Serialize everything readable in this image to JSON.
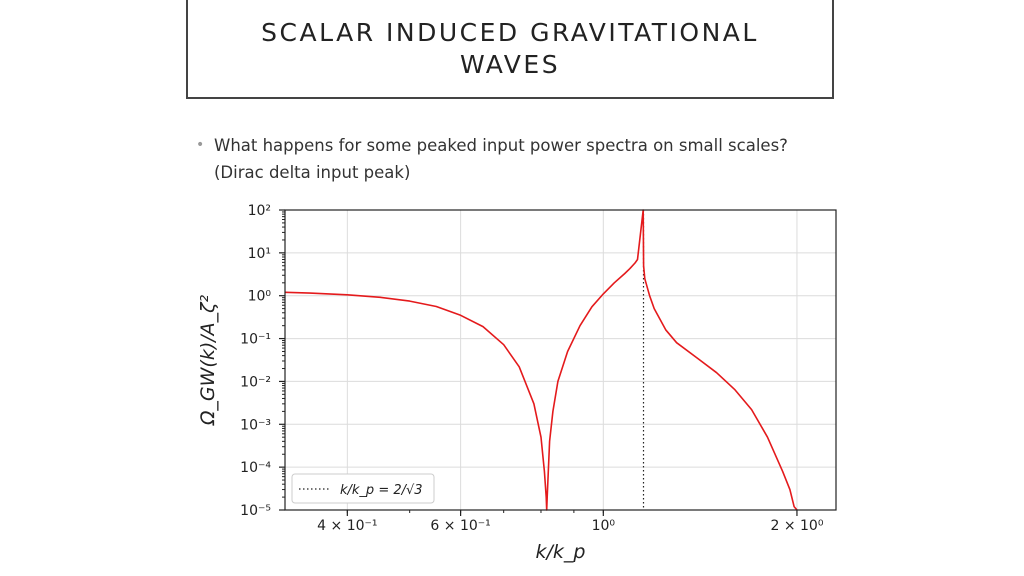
{
  "slide": {
    "title_line1": "SCALAR INDUCED GRAVITATIONAL",
    "title_line2": "WAVES",
    "bullet_line1": "What happens for some peaked input power spectra on small scales?",
    "bullet_line2": "(Dirac delta input peak)"
  },
  "chart_data": {
    "type": "line",
    "x_scale": "log",
    "y_scale": "log",
    "xlim": [
      0.32,
      2.3
    ],
    "ylim": [
      1e-05,
      100
    ],
    "grid": true,
    "xlabel": "k/k_p",
    "ylabel": "Ω_GW(k)/A_ζ²",
    "x_tick_labels": [
      {
        "value": 0.4,
        "label": "4 × 10⁻¹"
      },
      {
        "value": 0.6,
        "label": "6 × 10⁻¹"
      },
      {
        "value": 1.0,
        "label": "10⁰"
      },
      {
        "value": 2.0,
        "label": "2 × 10⁰"
      }
    ],
    "y_tick_labels": [
      {
        "value": 100,
        "label": "10²"
      },
      {
        "value": 10,
        "label": "10¹"
      },
      {
        "value": 1,
        "label": "10⁰"
      },
      {
        "value": 0.1,
        "label": "10⁻¹"
      },
      {
        "value": 0.01,
        "label": "10⁻²"
      },
      {
        "value": 0.001,
        "label": "10⁻³"
      },
      {
        "value": 0.0001,
        "label": "10⁻⁴"
      },
      {
        "value": 1e-05,
        "label": "10⁻⁵"
      }
    ],
    "series": [
      {
        "color": "#e41a1c",
        "x": [
          0.32,
          0.35,
          0.4,
          0.45,
          0.5,
          0.55,
          0.6,
          0.65,
          0.7,
          0.74,
          0.78,
          0.8,
          0.81,
          0.815,
          0.8165,
          0.818,
          0.825,
          0.835,
          0.85,
          0.88,
          0.92,
          0.96,
          1.0,
          1.04,
          1.08,
          1.1,
          1.12,
          1.13,
          1.1535,
          1.155,
          1.16,
          1.18,
          1.2,
          1.25,
          1.3,
          1.4,
          1.5,
          1.6,
          1.7,
          1.8,
          1.9,
          1.95,
          1.98,
          2.0
        ],
        "y": [
          1.2,
          1.15,
          1.05,
          0.92,
          0.75,
          0.56,
          0.35,
          0.19,
          0.072,
          0.022,
          0.003,
          0.0005,
          8e-05,
          2e-05,
          1e-05,
          2e-05,
          0.0004,
          0.002,
          0.01,
          0.05,
          0.2,
          0.55,
          1.1,
          2.0,
          3.3,
          4.3,
          5.8,
          7.0,
          100,
          5.0,
          2.5,
          1.0,
          0.5,
          0.16,
          0.08,
          0.035,
          0.016,
          0.0065,
          0.0022,
          0.0005,
          8e-05,
          3e-05,
          1.2e-05,
          1e-05
        ]
      }
    ],
    "vline": {
      "x": 1.1547,
      "style": "dotted",
      "color": "#222"
    },
    "legend": {
      "label": "k/k_p = 2/√3",
      "placement": "lower-left"
    }
  }
}
